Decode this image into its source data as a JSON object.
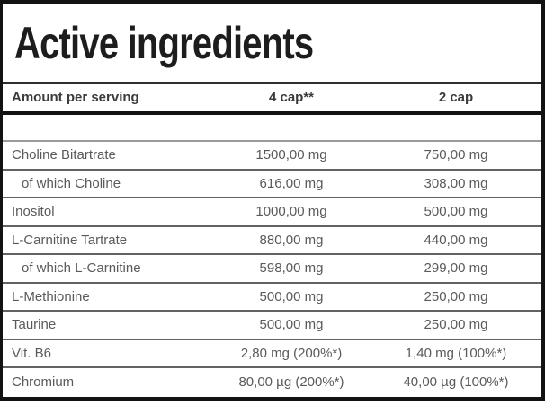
{
  "title": "Active ingredients",
  "table": {
    "columns": [
      "Amount per serving",
      "4 cap**",
      "2 cap"
    ],
    "rows": [
      {
        "name": "Choline Bitartrate",
        "per_4cap": "1500,00 mg",
        "per_2cap": "750,00 mg",
        "indent": false
      },
      {
        "name": "of which Choline",
        "per_4cap": "616,00 mg",
        "per_2cap": "308,00 mg",
        "indent": true
      },
      {
        "name": "Inositol",
        "per_4cap": "1000,00 mg",
        "per_2cap": "500,00 mg",
        "indent": false
      },
      {
        "name": "L-Carnitine Tartrate",
        "per_4cap": "880,00 mg",
        "per_2cap": "440,00 mg",
        "indent": false
      },
      {
        "name": "of which L-Carnitine",
        "per_4cap": "598,00 mg",
        "per_2cap": "299,00 mg",
        "indent": true
      },
      {
        "name": "L-Methionine",
        "per_4cap": "500,00 mg",
        "per_2cap": "250,00 mg",
        "indent": false
      },
      {
        "name": "Taurine",
        "per_4cap": "500,00 mg",
        "per_2cap": "250,00 mg",
        "indent": false
      },
      {
        "name": "Vit. B6",
        "per_4cap": "2,80 mg (200%*)",
        "per_2cap": "1,40 mg (100%*)",
        "indent": false
      },
      {
        "name": "Chromium",
        "per_4cap": "80,00 µg (200%*)",
        "per_2cap": "40,00 µg (100%*)",
        "indent": false
      }
    ]
  },
  "colors": {
    "title_text": "#1d1d1d",
    "header_text": "#3b3b3b",
    "body_text": "#5a5a5a",
    "border": "#121212"
  }
}
